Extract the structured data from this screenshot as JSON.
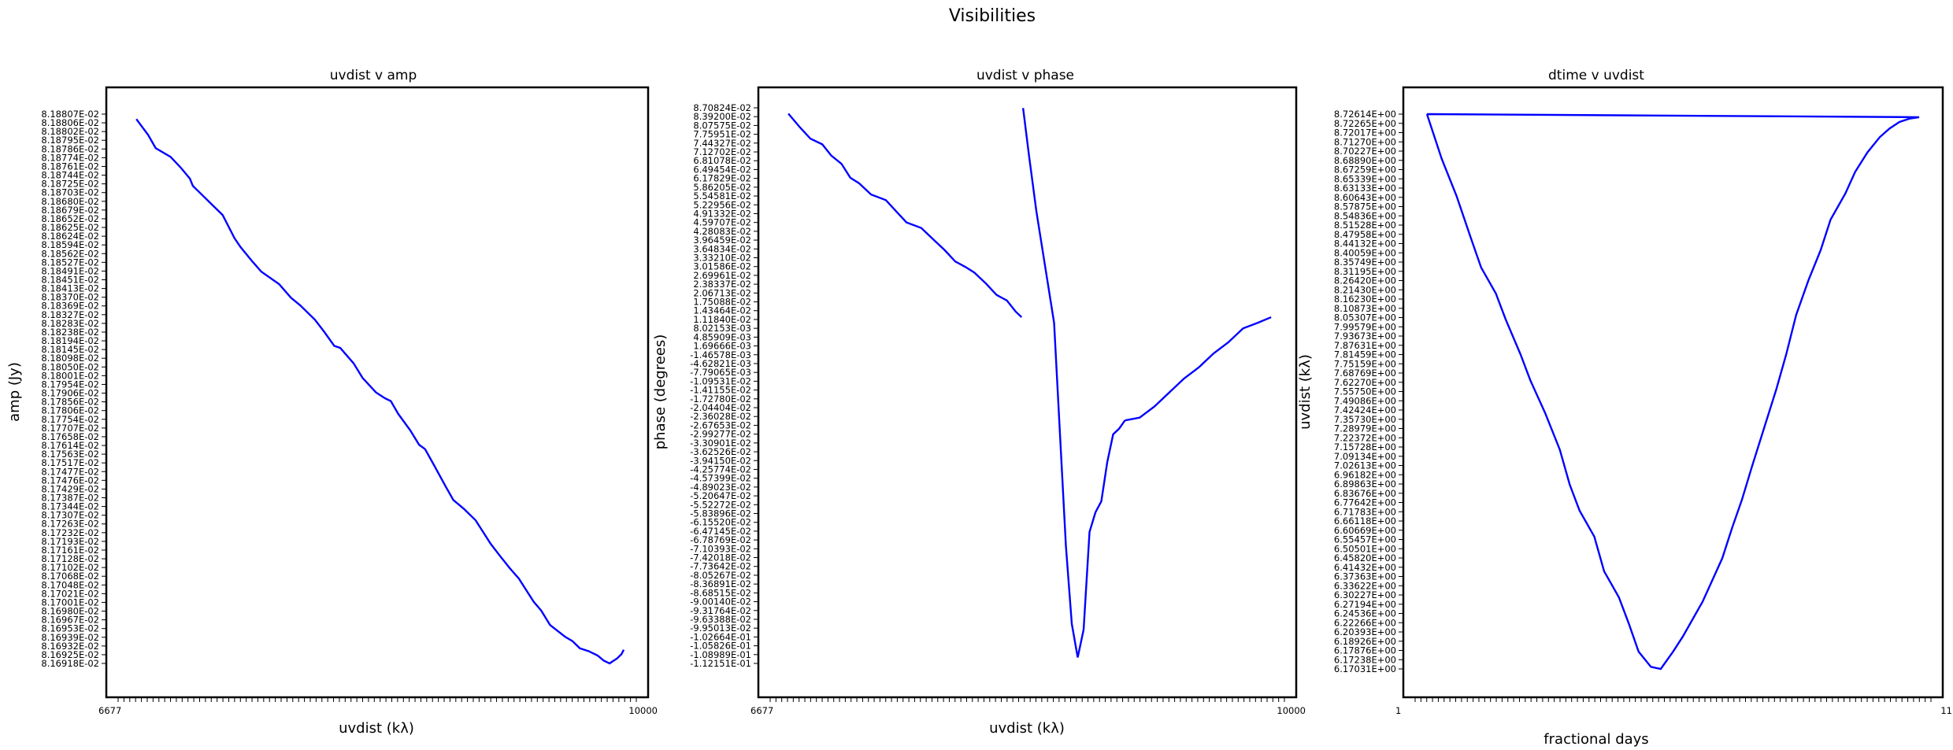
{
  "figure": {
    "title": "Visibilities"
  },
  "colors": {
    "series": "#0000ff",
    "axes": "#000000",
    "background": "#ffffff"
  },
  "chart_data": [
    {
      "type": "line",
      "title": "uvdist v amp",
      "xlabel": "uvdist (kλ)",
      "ylabel": "amp (Jy)",
      "x_ticks_first": "6677",
      "x_ticks_last": "10000",
      "xlim": [
        6677,
        10000
      ],
      "ylim": [
        0.0816918,
        0.0818807
      ],
      "y_ticks": [
        "8.18807E-02",
        "8.18806E-02",
        "8.18802E-02",
        "8.18795E-02",
        "8.18786E-02",
        "8.18774E-02",
        "8.18761E-02",
        "8.18744E-02",
        "8.18725E-02",
        "8.18703E-02",
        "8.18680E-02",
        "8.18679E-02",
        "8.18652E-02",
        "8.18625E-02",
        "8.18624E-02",
        "8.18594E-02",
        "8.18562E-02",
        "8.18527E-02",
        "8.18491E-02",
        "8.18451E-02",
        "8.18413E-02",
        "8.18370E-02",
        "8.18369E-02",
        "8.18327E-02",
        "8.18283E-02",
        "8.18238E-02",
        "8.18194E-02",
        "8.18145E-02",
        "8.18098E-02",
        "8.18050E-02",
        "8.18001E-02",
        "8.17954E-02",
        "8.17906E-02",
        "8.17856E-02",
        "8.17806E-02",
        "8.17754E-02",
        "8.17707E-02",
        "8.17658E-02",
        "8.17614E-02",
        "8.17563E-02",
        "8.17517E-02",
        "8.17477E-02",
        "8.17476E-02",
        "8.17429E-02",
        "8.17387E-02",
        "8.17344E-02",
        "8.17307E-02",
        "8.17263E-02",
        "8.17232E-02",
        "8.17193E-02",
        "8.17161E-02",
        "8.17128E-02",
        "8.17102E-02",
        "8.17068E-02",
        "8.17048E-02",
        "8.17021E-02",
        "8.17001E-02",
        "8.16980E-02",
        "8.16967E-02",
        "8.16953E-02",
        "8.16939E-02",
        "8.16932E-02",
        "8.16925E-02",
        "8.16918E-02"
      ],
      "series": [
        {
          "x": [
            6720,
            6800,
            6850,
            6950,
            7020,
            7080,
            7100,
            7130,
            7210,
            7300,
            7380,
            7420,
            7500,
            7560,
            7680,
            7760,
            7820,
            7920,
            7980,
            8050,
            8090,
            8180,
            8240,
            8330,
            8390,
            8430,
            8480,
            8560,
            8620,
            8660,
            8720,
            8800,
            8850,
            8920,
            9000,
            9050,
            9100,
            9160,
            9230,
            9290,
            9390,
            9440,
            9500,
            9600,
            9650,
            9700,
            9760,
            9820,
            9860,
            9900,
            9920,
            9950,
            9980,
            9995
          ],
          "y": [
            0.081879,
            0.0818735,
            0.081869,
            0.081866,
            0.0818622,
            0.0818585,
            0.081856,
            0.0818545,
            0.0818505,
            0.081846,
            0.081838,
            0.081835,
            0.08183,
            0.0818265,
            0.0818222,
            0.0818175,
            0.081815,
            0.08181,
            0.081806,
            0.081801,
            0.0818003,
            0.081795,
            0.08179,
            0.081785,
            0.081783,
            0.081782,
            0.0817776,
            0.081772,
            0.081767,
            0.0817655,
            0.08176,
            0.0817525,
            0.081748,
            0.081745,
            0.081741,
            0.081737,
            0.081733,
            0.081729,
            0.0817245,
            0.081721,
            0.081713,
            0.08171,
            0.081705,
            0.081701,
            0.0816995,
            0.081697,
            0.081696,
            0.0816945,
            0.0816928,
            0.0816918,
            0.0816925,
            0.0816935,
            0.081695,
            0.0816965
          ]
        }
      ]
    },
    {
      "type": "line",
      "title": "uvdist v phase",
      "xlabel": "uvdist (kλ)",
      "ylabel": "phase (degrees)",
      "x_ticks_first": "6677",
      "x_ticks_last": "10000",
      "xlim": [
        6677,
        10000
      ],
      "y_tick_first": "8.70824E-02",
      "y_tick_last": "-1.12151E-01",
      "ylim": [
        -0.112151,
        0.0870824
      ],
      "series": [
        {
          "x": [
            6720,
            6800,
            6870,
            6950,
            7010,
            7080,
            7140,
            7200,
            7280,
            7380,
            7450,
            7520,
            7620,
            7700,
            7780,
            7850,
            7920,
            7980,
            8060,
            8130,
            8200,
            8260,
            8300
          ],
          "y": [
            0.085,
            0.08,
            0.076,
            0.074,
            0.07,
            0.067,
            0.062,
            0.06,
            0.056,
            0.054,
            0.05,
            0.046,
            0.044,
            0.04,
            0.036,
            0.032,
            0.03,
            0.028,
            0.024,
            0.02,
            0.018,
            0.014,
            0.012
          ]
        },
        {
          "x": [
            8310,
            8350,
            8400,
            8460,
            8520,
            8560,
            8600,
            8640,
            8680,
            8720,
            8760,
            8800,
            8840,
            8880,
            8920,
            8960,
            9000
          ],
          "y": [
            0.087,
            0.07,
            0.05,
            0.03,
            0.01,
            -0.03,
            -0.07,
            -0.098,
            -0.11,
            -0.1,
            -0.065,
            -0.058,
            -0.054,
            -0.04,
            -0.03,
            -0.028,
            -0.025
          ]
        },
        {
          "x": [
            9000,
            9100,
            9200,
            9300,
            9400,
            9500,
            9600,
            9700,
            9800,
            9900,
            9990
          ],
          "y": [
            -0.025,
            -0.024,
            -0.02,
            -0.015,
            -0.01,
            -0.006,
            -0.001,
            0.003,
            0.008,
            0.01,
            0.012
          ]
        }
      ]
    },
    {
      "type": "line",
      "title": "dtime v uvdist",
      "xlabel": "fractional days",
      "ylabel": "uvdist (kλ)",
      "x_ticks_first": "1",
      "x_ticks_last": "11",
      "xlim": [
        1,
        11
      ],
      "ylim": [
        6.17031,
        8.72614
      ],
      "y_ticks": [
        "8.72614E+00",
        "8.72265E+00",
        "8.72017E+00",
        "8.71270E+00",
        "8.70227E+00",
        "8.68890E+00",
        "8.67259E+00",
        "8.65339E+00",
        "8.63133E+00",
        "8.60643E+00",
        "8.57875E+00",
        "8.54836E+00",
        "8.51528E+00",
        "8.47958E+00",
        "8.44132E+00",
        "8.40059E+00",
        "8.35749E+00",
        "8.31195E+00",
        "8.26420E+00",
        "8.21430E+00",
        "8.16230E+00",
        "8.10873E+00",
        "8.05307E+00",
        "7.99579E+00",
        "7.93673E+00",
        "7.87631E+00",
        "7.81459E+00",
        "7.75159E+00",
        "7.68769E+00",
        "7.62270E+00",
        "7.55750E+00",
        "7.49086E+00",
        "7.42424E+00",
        "7.35730E+00",
        "7.28979E+00",
        "7.22372E+00",
        "7.15728E+00",
        "7.09134E+00",
        "7.02613E+00",
        "6.96182E+00",
        "6.89863E+00",
        "6.83676E+00",
        "6.77642E+00",
        "6.71783E+00",
        "6.66118E+00",
        "6.60669E+00",
        "6.55457E+00",
        "6.50501E+00",
        "6.45820E+00",
        "6.41432E+00",
        "6.37363E+00",
        "6.33622E+00",
        "6.30227E+00",
        "6.27194E+00",
        "6.24536E+00",
        "6.22266E+00",
        "6.20393E+00",
        "6.18926E+00",
        "6.17876E+00",
        "6.17238E+00",
        "6.17031E+00"
      ],
      "series": [
        {
          "x": [
            1.0,
            1.3,
            1.6,
            1.9,
            2.1,
            2.4,
            2.6,
            2.9,
            3.1,
            3.4,
            3.7,
            3.9,
            4.1,
            4.4,
            4.6,
            4.9,
            5.1,
            5.3,
            5.55,
            5.75,
            6.0,
            6.2,
            6.4,
            6.6,
            6.8,
            7.0,
            7.2,
            7.4,
            7.6,
            7.85,
            8.1,
            8.3,
            8.5,
            8.75,
            9.0,
            9.2,
            9.5,
            9.7,
            9.95,
            10.2,
            10.4,
            10.6,
            10.8,
            11.0,
            1.0
          ],
          "y": [
            8.72614,
            8.52,
            8.35,
            8.15,
            8.02,
            7.9,
            7.78,
            7.62,
            7.5,
            7.35,
            7.18,
            7.02,
            6.9,
            6.78,
            6.62,
            6.5,
            6.38,
            6.25,
            6.18,
            6.17031,
            6.25,
            6.32,
            6.4,
            6.48,
            6.58,
            6.68,
            6.82,
            6.95,
            7.1,
            7.28,
            7.46,
            7.62,
            7.8,
            7.96,
            8.1,
            8.24,
            8.36,
            8.46,
            8.55,
            8.62,
            8.66,
            8.69,
            8.705,
            8.712,
            8.72614
          ]
        }
      ]
    }
  ]
}
